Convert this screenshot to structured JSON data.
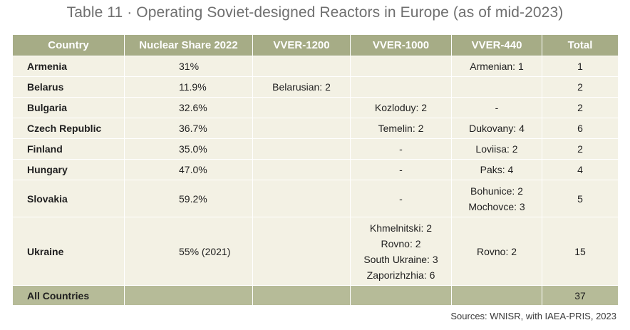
{
  "title": "Table 11 · Operating Soviet-designed Reactors in Europe (as of mid-2023)",
  "columns": [
    "Country",
    "Nuclear Share 2022",
    "VVER-1200",
    "VVER-1000",
    "VVER-440",
    "Total"
  ],
  "rows": [
    {
      "country": "Armenia",
      "share": "31%",
      "vver1200": [],
      "vver1000": [],
      "vver440": [
        "Armenian: 1"
      ],
      "total": "1"
    },
    {
      "country": "Belarus",
      "share": "11.9%",
      "vver1200": [
        "Belarusian: 2"
      ],
      "vver1000": [],
      "vver440": [],
      "total": "2"
    },
    {
      "country": "Bulgaria",
      "share": "32.6%",
      "vver1200": [],
      "vver1000": [
        "Kozloduy: 2"
      ],
      "vver440": [
        "-"
      ],
      "total": "2"
    },
    {
      "country": "Czech Republic",
      "share": "36.7%",
      "vver1200": [],
      "vver1000": [
        "Temelin: 2"
      ],
      "vver440": [
        "Dukovany: 4"
      ],
      "total": "6"
    },
    {
      "country": "Finland",
      "share": "35.0%",
      "vver1200": [],
      "vver1000": [
        "-"
      ],
      "vver440": [
        "Loviisa: 2"
      ],
      "total": "2"
    },
    {
      "country": "Hungary",
      "share": "47.0%",
      "vver1200": [],
      "vver1000": [
        "-"
      ],
      "vver440": [
        "Paks: 4"
      ],
      "total": "4"
    },
    {
      "country": "Slovakia",
      "share": "59.2%",
      "vver1200": [],
      "vver1000": [
        "-"
      ],
      "vver440": [
        "Bohunice: 2",
        "Mochovce: 3"
      ],
      "total": "5"
    },
    {
      "country": "Ukraine",
      "share": "55% (2021)",
      "vver1200": [],
      "vver1000": [
        "Khmelnitski: 2",
        "Rovno: 2",
        "South Ukraine: 3",
        "Zaporizhzhia: 6"
      ],
      "vver440": [
        "Rovno: 2"
      ],
      "total": "15"
    }
  ],
  "totals": {
    "label": "All Countries",
    "total": "37"
  },
  "source": "Sources: WNISR, with IAEA-PRIS, 2023"
}
